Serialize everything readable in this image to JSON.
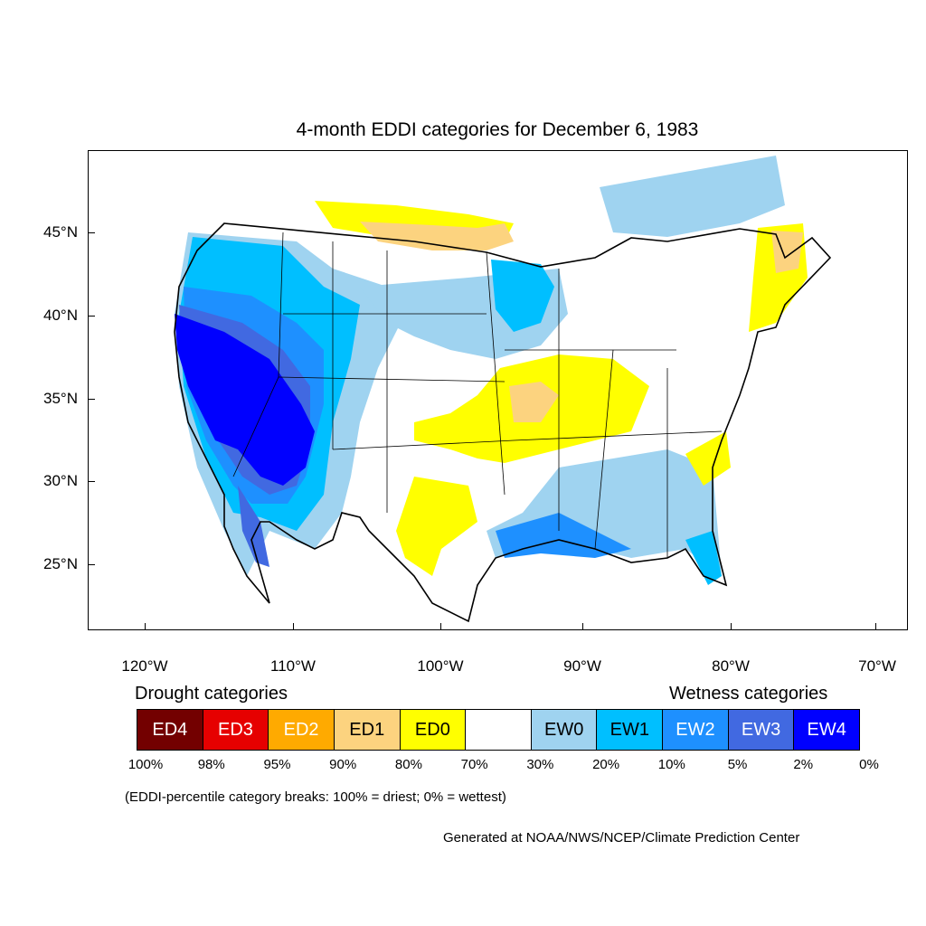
{
  "title": "4-month EDDI categories for December 6, 1983",
  "lat_labels": [
    "45°N",
    "40°N",
    "35°N",
    "30°N",
    "25°N"
  ],
  "lon_labels": [
    "120°W",
    "110°W",
    "100°W",
    "90°W",
    "80°W",
    "70°W"
  ],
  "legend": {
    "drought_heading": "Drought categories",
    "wetness_heading": "Wetness categories",
    "categories": [
      {
        "label": "ED4",
        "color": "#730000",
        "text_color": "#ffffff"
      },
      {
        "label": "ED3",
        "color": "#e60000",
        "text_color": "#ffffff"
      },
      {
        "label": "ED2",
        "color": "#ffaa00",
        "text_color": "#ffffff"
      },
      {
        "label": "ED1",
        "color": "#fcd37f",
        "text_color": "#000000"
      },
      {
        "label": "ED0",
        "color": "#ffff00",
        "text_color": "#000000"
      },
      {
        "label": "",
        "color": "#ffffff",
        "text_color": "#000000"
      },
      {
        "label": "EW0",
        "color": "#9fd3f0",
        "text_color": "#000000"
      },
      {
        "label": "EW1",
        "color": "#00bfff",
        "text_color": "#000000"
      },
      {
        "label": "EW2",
        "color": "#1e90ff",
        "text_color": "#ffffff"
      },
      {
        "label": "EW3",
        "color": "#4169e1",
        "text_color": "#ffffff"
      },
      {
        "label": "EW4",
        "color": "#0000ff",
        "text_color": "#ffffff"
      }
    ],
    "breaks": [
      "100%",
      "98%",
      "95%",
      "90%",
      "80%",
      "70%",
      "30%",
      "20%",
      "10%",
      "5%",
      "2%",
      "0%"
    ]
  },
  "note": "(EDDI-percentile category breaks: 100% = driest; 0% = wettest)",
  "credit": "Generated at NOAA/NWS/NCEP/Climate Prediction Center"
}
